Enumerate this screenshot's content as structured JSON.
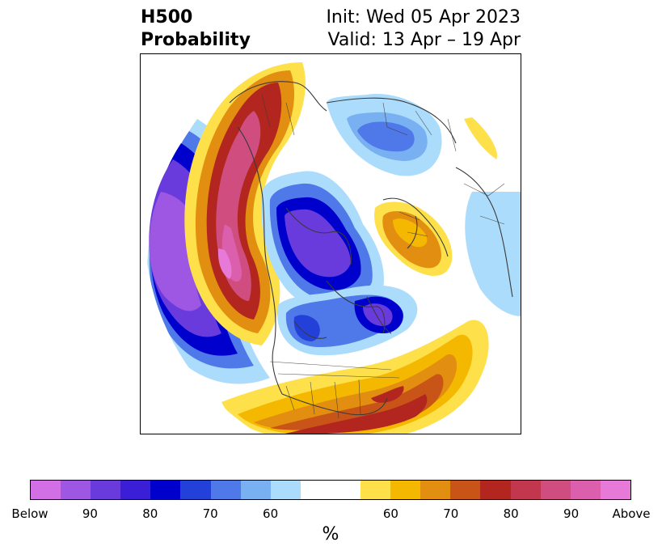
{
  "title": {
    "left_line1": "H500",
    "left_line2": "Probability",
    "right_line1": "Init: Wed 05 Apr 2023",
    "right_line2": "Valid: 13 Apr – 19 Apr"
  },
  "colorbar": {
    "unit": "%",
    "colors": [
      "#d36fe5",
      "#9d57e2",
      "#6a3bdc",
      "#3a1fd6",
      "#0000cc",
      "#2340d9",
      "#4f78e8",
      "#78b0f2",
      "#acdcfb",
      "#ffffff",
      "#ffffff",
      "#fee04a",
      "#f4b800",
      "#e28e10",
      "#c85418",
      "#b2261f",
      "#c2364e",
      "#cf4e7f",
      "#dc5fae",
      "#e77ad9"
    ],
    "ticks": [
      "Below",
      "90",
      "80",
      "70",
      "60",
      "60",
      "70",
      "80",
      "90",
      "Above"
    ]
  },
  "map": {
    "colors": {
      "above_light": "#fee04a",
      "above_yellow": "#f4b800",
      "above_orange": "#e28e10",
      "above_darkorange": "#c85418",
      "above_red": "#b2261f",
      "above_crimson": "#c2364e",
      "above_pink": "#cf4e7f",
      "above_magenta": "#dc5fae",
      "above_max": "#e77ad9",
      "below_light": "#acdcfb",
      "below_sky": "#78b0f2",
      "below_mid": "#4f78e8",
      "below_royal": "#2340d9",
      "below_navy": "#0000cc",
      "below_indigo": "#3a1fd6",
      "below_violet": "#6a3bdc",
      "coast": "#3a3a3a"
    }
  }
}
